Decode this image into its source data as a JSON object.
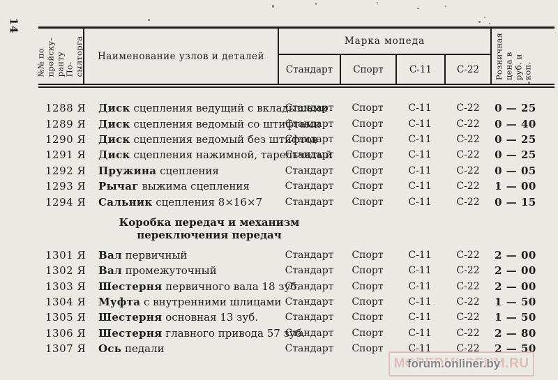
{
  "page": {
    "number": "14"
  },
  "table": {
    "header": {
      "col_index": "№№ по\nпрейску-\nранту По-\nсылторга",
      "col_name": "Наименование узлов и деталей",
      "col_brand_group": "Марка мопеда",
      "brands": [
        "Стандарт",
        "Спорт",
        "С-11",
        "С-22"
      ],
      "col_price": "Розничная\nцена в\nруб. и коп."
    },
    "sections": [
      {
        "heading": "",
        "rows": [
          {
            "num": "1288 Я",
            "name_bold": "Диск",
            "name_rest": " сцепления ведущий с вкладышами",
            "brands": [
              "Стандарт",
              "Спорт",
              "С-11",
              "С-22"
            ],
            "price": "0 — 25"
          },
          {
            "num": "1289 Я",
            "name_bold": "Диск",
            "name_rest": " сцепления ведомый со штифтами",
            "brands": [
              "Стандарт",
              "Спорт",
              "С-11",
              "С-22"
            ],
            "price": "0 — 40"
          },
          {
            "num": "1290 Я",
            "name_bold": "Диск",
            "name_rest": " сцепления ведомый без штифтов",
            "brands": [
              "Стандарт",
              "Спорт",
              "С-11",
              "С-22"
            ],
            "price": "0 — 25"
          },
          {
            "num": "1291 Я",
            "name_bold": "Диск",
            "name_rest": " сцепления нажимной, тарельчатый",
            "brands": [
              "Стандарт",
              "Спорт",
              "С-11",
              "С-22"
            ],
            "price": "0 — 25"
          },
          {
            "num": "1292 Я",
            "name_bold": "Пружина",
            "name_rest": " сцепления",
            "brands": [
              "Стандарт",
              "Спорт",
              "С-11",
              "С-22"
            ],
            "price": "0 — 05"
          },
          {
            "num": "1293 Я",
            "name_bold": "Рычаг",
            "name_rest": " выжима сцепления",
            "brands": [
              "Стандарт",
              "Спорт",
              "С-11",
              "С-22"
            ],
            "price": "1 — 00"
          },
          {
            "num": "1294 Я",
            "name_bold": "Сальник",
            "name_rest": " сцепления 8×16×7",
            "brands": [
              "Стандарт",
              "Спорт",
              "С-11",
              "С-22"
            ],
            "price": "0 — 15"
          }
        ]
      },
      {
        "heading": "Коробка передач и механизм\nпереключения передач",
        "rows": [
          {
            "num": "1301 Я",
            "name_bold": "Вал",
            "name_rest": " первичный",
            "brands": [
              "Стандарт",
              "Спорт",
              "С-11",
              "С-22"
            ],
            "price": "2 — 00"
          },
          {
            "num": "1302 Я",
            "name_bold": "Вал",
            "name_rest": " промежуточный",
            "brands": [
              "Стандарт",
              "Спорт",
              "С-11",
              "С-22"
            ],
            "price": "2 — 00"
          },
          {
            "num": "1303 Я",
            "name_bold": "Шестерня",
            "name_rest": " первичного вала 18 зуб.",
            "brands": [
              "Стандарт",
              "Спорт",
              "С-11",
              "С-22"
            ],
            "price": "2 — 00"
          },
          {
            "num": "1304 Я",
            "name_bold": "Муфта",
            "name_rest": " с внутренними шлицами",
            "brands": [
              "Стандарт",
              "Спорт",
              "С-11",
              "С-22"
            ],
            "price": "1 — 50"
          },
          {
            "num": "1305 Я",
            "name_bold": "Шестерня",
            "name_rest": " основная 13 зуб.",
            "brands": [
              "Стандарт",
              "Спорт",
              "С-11",
              "С-22"
            ],
            "price": "1 — 50"
          },
          {
            "num": "1306 Я",
            "name_bold": "Шестерня",
            "name_rest": " главного привода 57 зуб.",
            "brands": [
              "Стандарт",
              "Спорт",
              "С-11",
              "С-22"
            ],
            "price": "2 — 80"
          },
          {
            "num": "1307 Я",
            "name_bold": "Ось",
            "name_rest": " педали",
            "brands": [
              "Стандарт",
              "Спорт",
              "С-11",
              "С-22"
            ],
            "price": "2 — 50"
          }
        ]
      }
    ]
  },
  "watermark": {
    "box_text": "MOPEDMUSEUM.RU",
    "overlay_text": "forum.onliner.by",
    "box_color": "#d89d9b",
    "overlay_color": "#767676"
  }
}
